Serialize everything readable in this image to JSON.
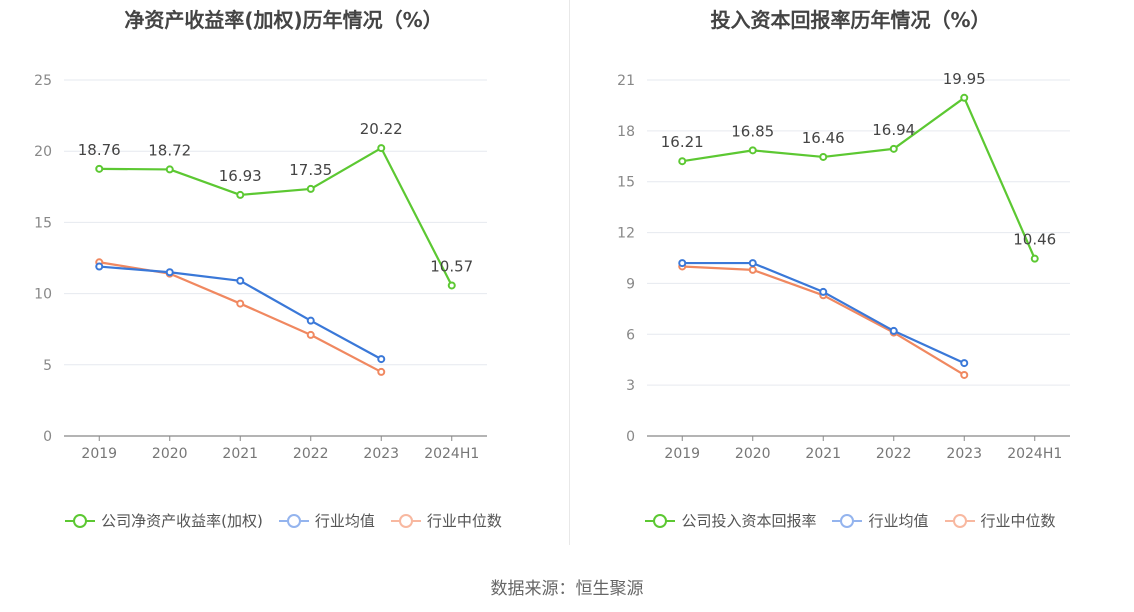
{
  "source_note": "数据来源：恒生聚源",
  "chart_data": [
    {
      "type": "line",
      "title": "净资产收益率(加权)历年情况（%）",
      "categories": [
        "2019",
        "2020",
        "2021",
        "2022",
        "2023",
        "2024H1"
      ],
      "ylim": [
        0,
        25
      ],
      "yticks": [
        0,
        5,
        10,
        15,
        20,
        25
      ],
      "grid": true,
      "legend_position": "bottom",
      "series": [
        {
          "name": "公司净资产收益率(加权)",
          "color": "#5cc832",
          "values": [
            18.76,
            18.72,
            16.93,
            17.35,
            20.22,
            10.57
          ],
          "labels": true
        },
        {
          "name": "行业均值",
          "color": "#3a78d8",
          "legend_color": "#94b4ee",
          "values": [
            11.9,
            11.5,
            10.9,
            8.1,
            5.4,
            null
          ],
          "labels": false
        },
        {
          "name": "行业中位数",
          "color": "#f08860",
          "legend_color": "#f8b8a0",
          "values": [
            12.2,
            11.4,
            9.3,
            7.1,
            4.5,
            null
          ],
          "labels": false
        }
      ]
    },
    {
      "type": "line",
      "title": "投入资本回报率历年情况（%）",
      "categories": [
        "2019",
        "2020",
        "2021",
        "2022",
        "2023",
        "2024H1"
      ],
      "ylim": [
        0,
        21
      ],
      "yticks": [
        0,
        3,
        6,
        9,
        12,
        15,
        18,
        21
      ],
      "grid": true,
      "legend_position": "bottom",
      "series": [
        {
          "name": "公司投入资本回报率",
          "color": "#5cc832",
          "values": [
            16.21,
            16.85,
            16.46,
            16.94,
            19.95,
            10.46
          ],
          "labels": true
        },
        {
          "name": "行业均值",
          "color": "#3a78d8",
          "legend_color": "#94b4ee",
          "values": [
            10.2,
            10.2,
            8.5,
            6.2,
            4.3,
            null
          ],
          "labels": false
        },
        {
          "name": "行业中位数",
          "color": "#f08860",
          "legend_color": "#f8b8a0",
          "values": [
            10.0,
            9.8,
            8.3,
            6.1,
            3.6,
            null
          ],
          "labels": false
        }
      ]
    }
  ]
}
